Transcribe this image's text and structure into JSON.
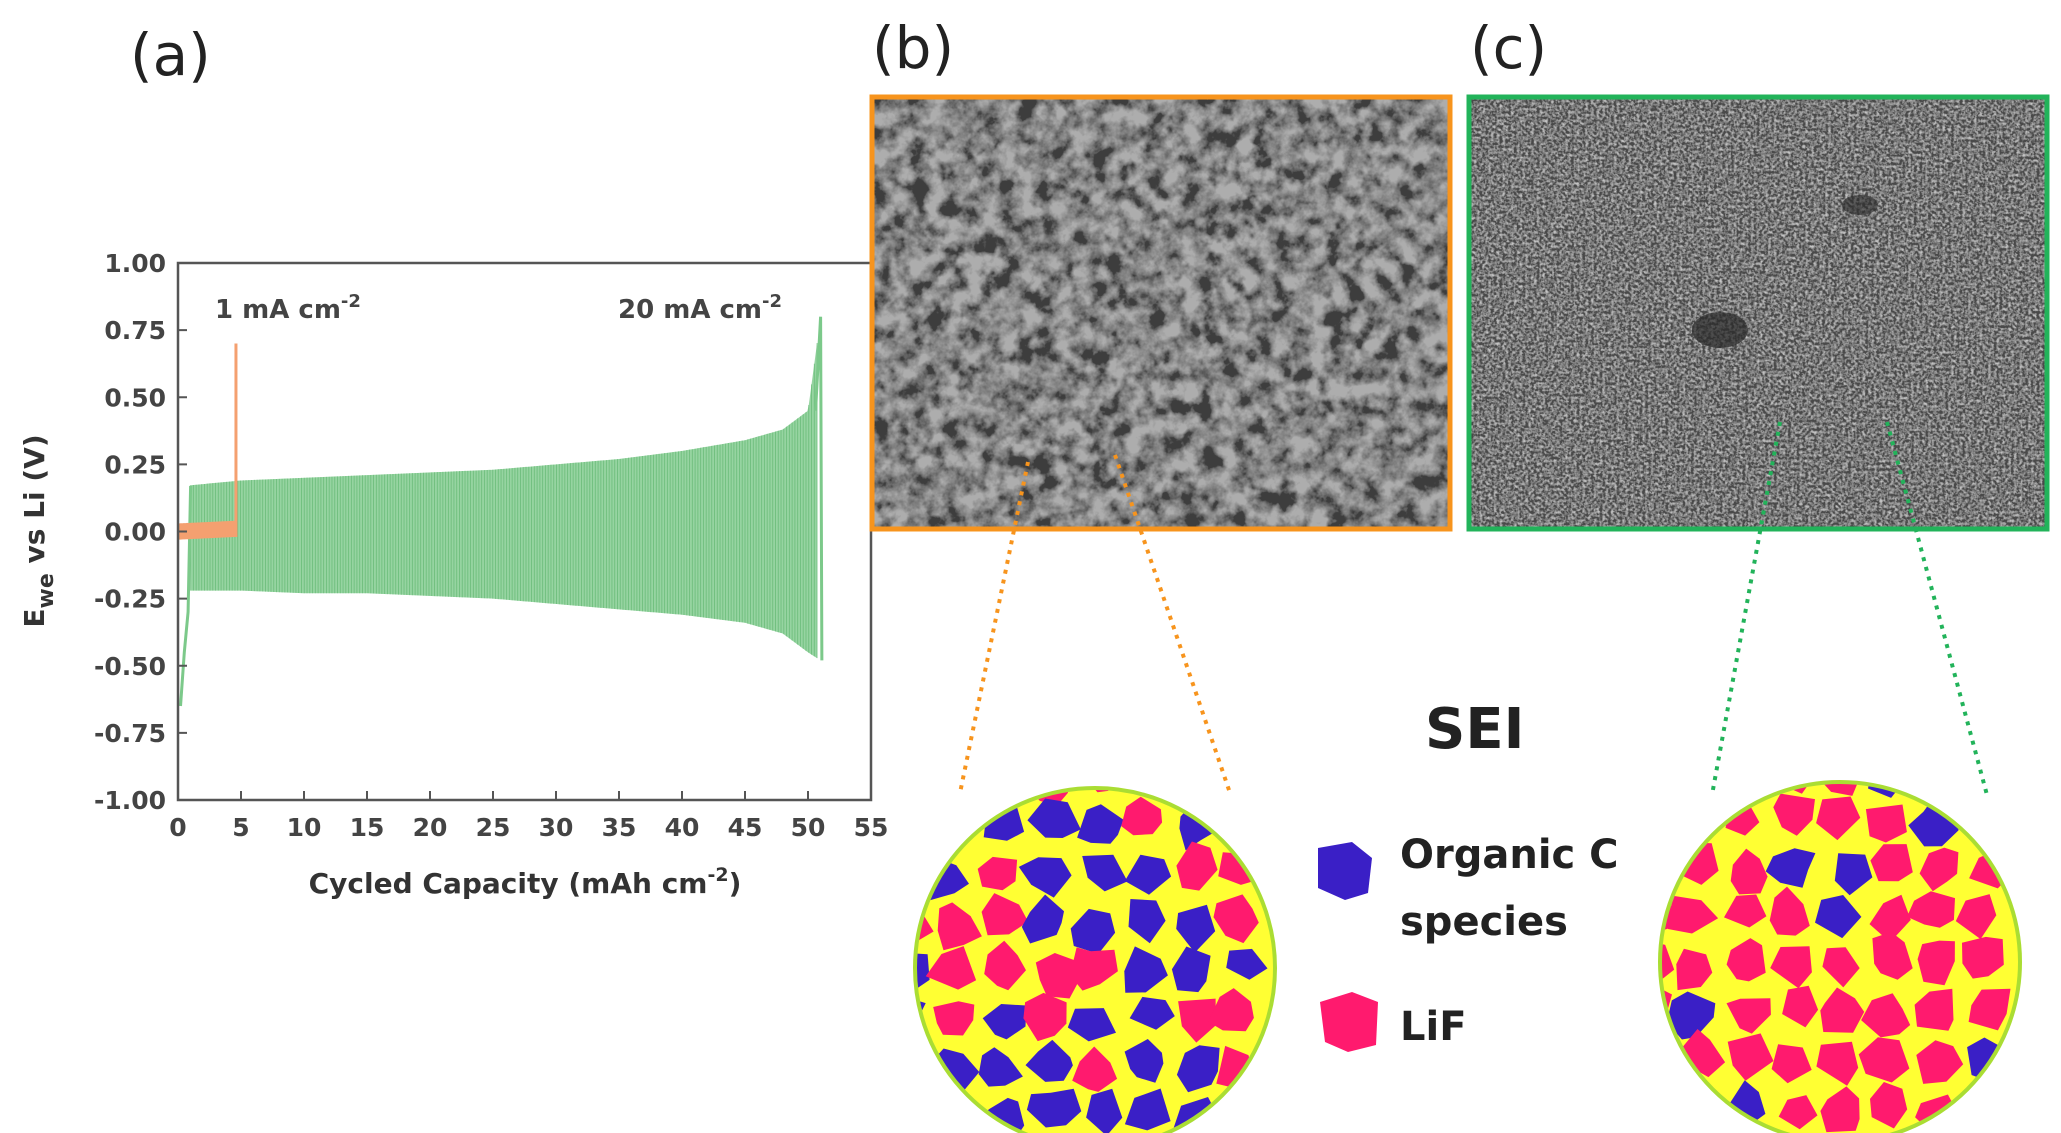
{
  "panels": {
    "a": {
      "label": "(a)"
    },
    "b": {
      "label": "(b)"
    },
    "c": {
      "label": "(c)"
    }
  },
  "colors": {
    "green_trace": "#7cc98a",
    "orange_trace": "#f4a070",
    "orange_frame": "#f7941d",
    "green_frame": "#22b35a",
    "organic": "#3a1fc6",
    "lif": "#ff1a6e",
    "binder": "#ffff33",
    "rim": "#aadd33"
  },
  "chart_data": {
    "type": "line",
    "xlabel": "Cycled Capacity (mAh cm",
    "xlabel_sup": "-2",
    "xlabel_end": ")",
    "ylabel_main": "E",
    "ylabel_sub": "we",
    "ylabel_rest": " vs Li (V)",
    "xlim": [
      0,
      55
    ],
    "ylim": [
      -1.0,
      1.0
    ],
    "xticks": [
      "0",
      "5",
      "10",
      "15",
      "20",
      "25",
      "30",
      "35",
      "40",
      "45",
      "50",
      "55"
    ],
    "yticks": [
      "1.00",
      "0.75",
      "0.50",
      "0.25",
      "0.00",
      "-0.25",
      "-0.50",
      "-0.75",
      "-1.00"
    ],
    "annotations": [
      {
        "text": "1 mA cm",
        "sup": "-2"
      },
      {
        "text": "20 mA cm",
        "sup": "-2"
      }
    ],
    "series": [
      {
        "current": "20 mA cm-2",
        "x_range": [
          0,
          51.2
        ],
        "upper_envelope": [
          [
            0.5,
            0.17
          ],
          [
            5,
            0.19
          ],
          [
            10,
            0.2
          ],
          [
            15,
            0.21
          ],
          [
            20,
            0.22
          ],
          [
            25,
            0.23
          ],
          [
            30,
            0.25
          ],
          [
            35,
            0.27
          ],
          [
            40,
            0.3
          ],
          [
            45,
            0.34
          ],
          [
            48,
            0.38
          ],
          [
            50,
            0.45
          ],
          [
            51,
            0.8
          ]
        ],
        "lower_envelope": [
          [
            0.5,
            -0.22
          ],
          [
            5,
            -0.22
          ],
          [
            10,
            -0.23
          ],
          [
            15,
            -0.23
          ],
          [
            20,
            -0.24
          ],
          [
            25,
            -0.25
          ],
          [
            30,
            -0.27
          ],
          [
            35,
            -0.29
          ],
          [
            40,
            -0.31
          ],
          [
            45,
            -0.34
          ],
          [
            48,
            -0.38
          ],
          [
            50,
            -0.45
          ],
          [
            51,
            -0.48
          ]
        ]
      },
      {
        "current": "1 mA cm-2",
        "x_range": [
          0,
          4.7
        ],
        "upper_envelope": [
          [
            0,
            0.03
          ],
          [
            4.5,
            0.04
          ],
          [
            4.6,
            0.7
          ]
        ],
        "lower_envelope": [
          [
            0,
            -0.03
          ],
          [
            4.5,
            -0.02
          ]
        ]
      }
    ]
  },
  "schematic": {
    "title": "SEI",
    "legend": [
      {
        "label_line1": "Organic C",
        "label_line2": "species"
      },
      {
        "label_line1": "LiF",
        "label_line2": ""
      }
    ]
  }
}
